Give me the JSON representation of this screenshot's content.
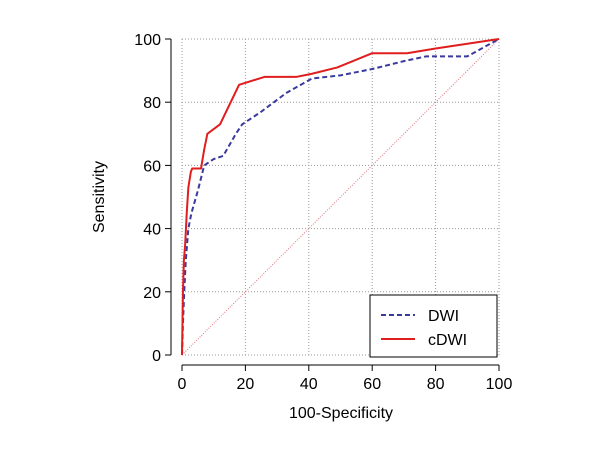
{
  "chart_data": {
    "type": "line",
    "title": "",
    "xlabel": "100-Specificity",
    "ylabel": "Sensitivity",
    "xlim": [
      0,
      100
    ],
    "ylim": [
      0,
      100
    ],
    "xticks": [
      0,
      20,
      40,
      60,
      80,
      100
    ],
    "yticks": [
      0,
      20,
      40,
      60,
      80,
      100
    ],
    "grid": true,
    "legend_position": "bottom-right",
    "reference_line": {
      "from": [
        0,
        0
      ],
      "to": [
        100,
        100
      ],
      "color": "#e0707a",
      "style": "dotted"
    },
    "series": [
      {
        "name": "DWI",
        "color": "#3a3a9e",
        "style": "dashed",
        "x": [
          0,
          0.3,
          0.7,
          1.2,
          2,
          3,
          5,
          7,
          10,
          13,
          17,
          19,
          25,
          33,
          41,
          50,
          60,
          70,
          77,
          83,
          90,
          100
        ],
        "y": [
          0,
          10,
          20,
          30,
          40,
          45,
          52,
          60,
          62,
          63,
          70,
          73,
          77,
          83,
          87.5,
          88.5,
          90.5,
          93,
          94.5,
          94.5,
          94.5,
          100
        ]
      },
      {
        "name": "cDWI",
        "color": "#e01e1e",
        "style": "solid",
        "x": [
          0,
          0.3,
          0.6,
          1,
          1.5,
          2,
          2.8,
          3.2,
          6,
          7,
          8,
          12,
          18,
          26,
          36,
          41,
          49,
          60,
          61.5,
          71,
          80,
          100
        ],
        "y": [
          0,
          20,
          30,
          35,
          45,
          53,
          58,
          59,
          59,
          65,
          70,
          73,
          85.5,
          88,
          88,
          89,
          91,
          95.5,
          95.5,
          95.5,
          97,
          100
        ]
      }
    ]
  }
}
